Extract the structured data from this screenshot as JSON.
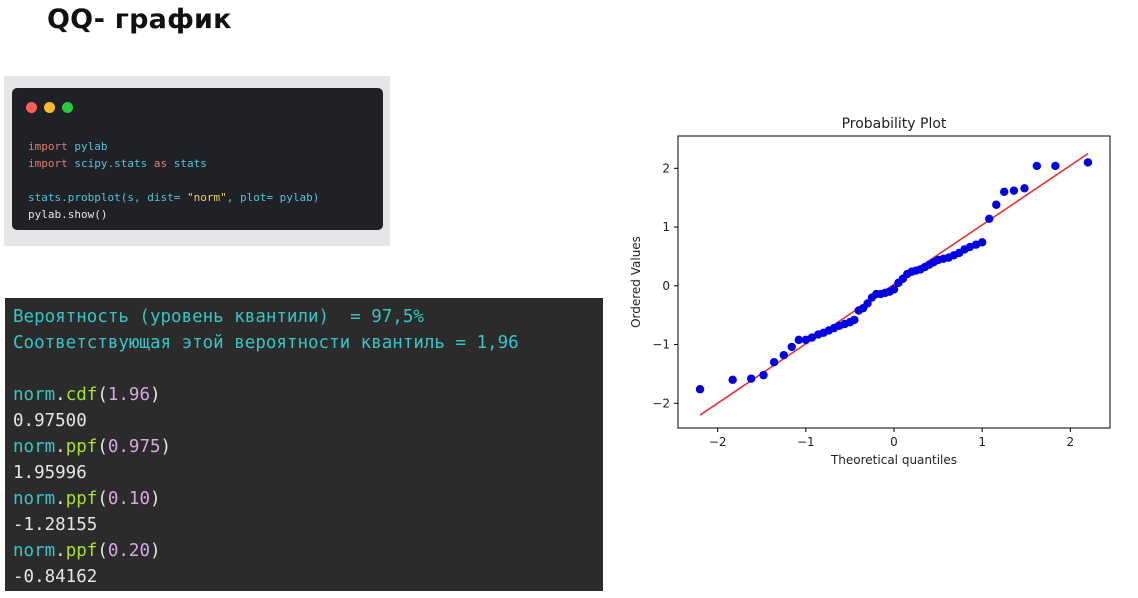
{
  "page": {
    "title": "QQ- график"
  },
  "code_window": {
    "dot_colors": [
      "#ff5f56",
      "#ffbd2e",
      "#27c93f"
    ],
    "lines": [
      [
        {
          "t": "import",
          "c": "#e0806a"
        },
        {
          "t": " pylab",
          "c": "#56c3d9"
        }
      ],
      [
        {
          "t": "import",
          "c": "#e0806a"
        },
        {
          "t": " scipy.stats ",
          "c": "#56c3d9"
        },
        {
          "t": "as",
          "c": "#e0806a"
        },
        {
          "t": " stats",
          "c": "#56c3d9"
        }
      ],
      [],
      [
        {
          "t": "stats.probplot(s, dist= ",
          "c": "#56c3d9"
        },
        {
          "t": "\"norm\"",
          "c": "#f1d263"
        },
        {
          "t": ", plot= pylab)",
          "c": "#56c3d9"
        }
      ],
      [
        {
          "t": "pylab.show()",
          "c": "#e6e6e6"
        }
      ]
    ]
  },
  "console": {
    "colors": {
      "text_cyan": "#36c6c6",
      "func_green": "#a6e22e",
      "punct": "#e6e6e6",
      "number": "#d9a6e6",
      "output": "#e6e6e6"
    },
    "lines": [
      [
        {
          "t": "Вероятность (уровень квантили)  = 97,5%",
          "c": "text_cyan"
        }
      ],
      [
        {
          "t": "Соответствующая этой вероятности квантиль = 1,96",
          "c": "text_cyan"
        }
      ],
      [],
      [
        {
          "t": "norm",
          "c": "text_cyan"
        },
        {
          "t": ".",
          "c": "punct"
        },
        {
          "t": "cdf",
          "c": "func_green"
        },
        {
          "t": "(",
          "c": "punct"
        },
        {
          "t": "1.96",
          "c": "number"
        },
        {
          "t": ")",
          "c": "punct"
        }
      ],
      [
        {
          "t": "0.97500",
          "c": "output"
        }
      ],
      [
        {
          "t": "norm",
          "c": "text_cyan"
        },
        {
          "t": ".",
          "c": "punct"
        },
        {
          "t": "ppf",
          "c": "func_green"
        },
        {
          "t": "(",
          "c": "punct"
        },
        {
          "t": "0.975",
          "c": "number"
        },
        {
          "t": ")",
          "c": "punct"
        }
      ],
      [
        {
          "t": "1.95996",
          "c": "output"
        }
      ],
      [
        {
          "t": "norm",
          "c": "text_cyan"
        },
        {
          "t": ".",
          "c": "punct"
        },
        {
          "t": "ppf",
          "c": "func_green"
        },
        {
          "t": "(",
          "c": "punct"
        },
        {
          "t": "0.10",
          "c": "number"
        },
        {
          "t": ")",
          "c": "punct"
        }
      ],
      [
        {
          "t": "-1.28155",
          "c": "output"
        }
      ],
      [
        {
          "t": "norm",
          "c": "text_cyan"
        },
        {
          "t": ".",
          "c": "punct"
        },
        {
          "t": "ppf",
          "c": "func_green"
        },
        {
          "t": "(",
          "c": "punct"
        },
        {
          "t": "0.20",
          "c": "number"
        },
        {
          "t": ")",
          "c": "punct"
        }
      ],
      [
        {
          "t": "-0.84162",
          "c": "output"
        }
      ]
    ]
  },
  "chart_data": {
    "type": "scatter",
    "title": "Probability Plot",
    "xlabel": "Theoretical quantiles",
    "ylabel": "Ordered Values",
    "xlim": [
      -2.45,
      2.45
    ],
    "ylim": [
      -2.42,
      2.55
    ],
    "xticks": [
      -2,
      -1,
      0,
      1,
      2
    ],
    "yticks": [
      -2,
      -1,
      0,
      1,
      2
    ],
    "grid": false,
    "point_color": "#0000e6",
    "line_color": "#e63232",
    "fit_line": {
      "x": [
        -2.2,
        2.2
      ],
      "y": [
        -2.2,
        2.25
      ]
    },
    "points": [
      [
        -2.2,
        -1.76
      ],
      [
        -1.83,
        -1.6
      ],
      [
        -1.62,
        -1.58
      ],
      [
        -1.48,
        -1.52
      ],
      [
        -1.36,
        -1.3
      ],
      [
        -1.25,
        -1.18
      ],
      [
        -1.16,
        -1.04
      ],
      [
        -1.08,
        -0.92
      ],
      [
        -1.0,
        -0.92
      ],
      [
        -0.93,
        -0.88
      ],
      [
        -0.86,
        -0.83
      ],
      [
        -0.8,
        -0.8
      ],
      [
        -0.74,
        -0.76
      ],
      [
        -0.68,
        -0.72
      ],
      [
        -0.62,
        -0.68
      ],
      [
        -0.56,
        -0.65
      ],
      [
        -0.5,
        -0.62
      ],
      [
        -0.45,
        -0.58
      ],
      [
        -0.4,
        -0.42
      ],
      [
        -0.35,
        -0.38
      ],
      [
        -0.3,
        -0.3
      ],
      [
        -0.25,
        -0.2
      ],
      [
        -0.2,
        -0.14
      ],
      [
        -0.15,
        -0.14
      ],
      [
        -0.1,
        -0.12
      ],
      [
        -0.05,
        -0.1
      ],
      [
        0.0,
        -0.06
      ],
      [
        0.05,
        0.05
      ],
      [
        0.1,
        0.12
      ],
      [
        0.15,
        0.2
      ],
      [
        0.2,
        0.24
      ],
      [
        0.25,
        0.26
      ],
      [
        0.3,
        0.28
      ],
      [
        0.35,
        0.32
      ],
      [
        0.4,
        0.36
      ],
      [
        0.45,
        0.4
      ],
      [
        0.5,
        0.44
      ],
      [
        0.56,
        0.46
      ],
      [
        0.62,
        0.48
      ],
      [
        0.68,
        0.52
      ],
      [
        0.74,
        0.56
      ],
      [
        0.8,
        0.62
      ],
      [
        0.86,
        0.66
      ],
      [
        0.93,
        0.7
      ],
      [
        1.0,
        0.74
      ],
      [
        1.08,
        1.14
      ],
      [
        1.16,
        1.38
      ],
      [
        1.25,
        1.6
      ],
      [
        1.36,
        1.62
      ],
      [
        1.48,
        1.66
      ],
      [
        1.62,
        2.04
      ],
      [
        1.83,
        2.04
      ],
      [
        2.2,
        2.1
      ]
    ]
  }
}
